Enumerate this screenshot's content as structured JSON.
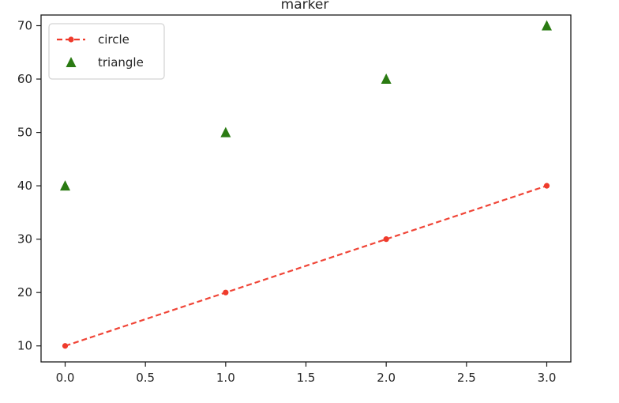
{
  "chart_data": {
    "type": "line",
    "title": "marker",
    "xlabel": "",
    "ylabel": "",
    "xlim": [
      -0.15,
      3.15
    ],
    "ylim": [
      7,
      72
    ],
    "xticks": [
      0.0,
      0.5,
      1.0,
      1.5,
      2.0,
      2.5,
      3.0
    ],
    "xtick_labels": [
      "0.0",
      "0.5",
      "1.0",
      "1.5",
      "2.0",
      "2.5",
      "3.0"
    ],
    "yticks": [
      10,
      20,
      30,
      40,
      50,
      60,
      70
    ],
    "ytick_labels": [
      "10",
      "20",
      "30",
      "40",
      "50",
      "60",
      "70"
    ],
    "grid": false,
    "legend": "upper-left",
    "series": [
      {
        "name": "circle",
        "x": [
          0,
          1,
          2,
          3
        ],
        "values": [
          10,
          20,
          30,
          40
        ],
        "marker": "circle",
        "line": "dashed",
        "color": "#ef3b2c"
      },
      {
        "name": "triangle",
        "x": [
          0,
          1,
          2,
          3
        ],
        "values": [
          40,
          50,
          60,
          70
        ],
        "marker": "triangle",
        "line": "none",
        "color": "#2a7a12"
      }
    ]
  }
}
